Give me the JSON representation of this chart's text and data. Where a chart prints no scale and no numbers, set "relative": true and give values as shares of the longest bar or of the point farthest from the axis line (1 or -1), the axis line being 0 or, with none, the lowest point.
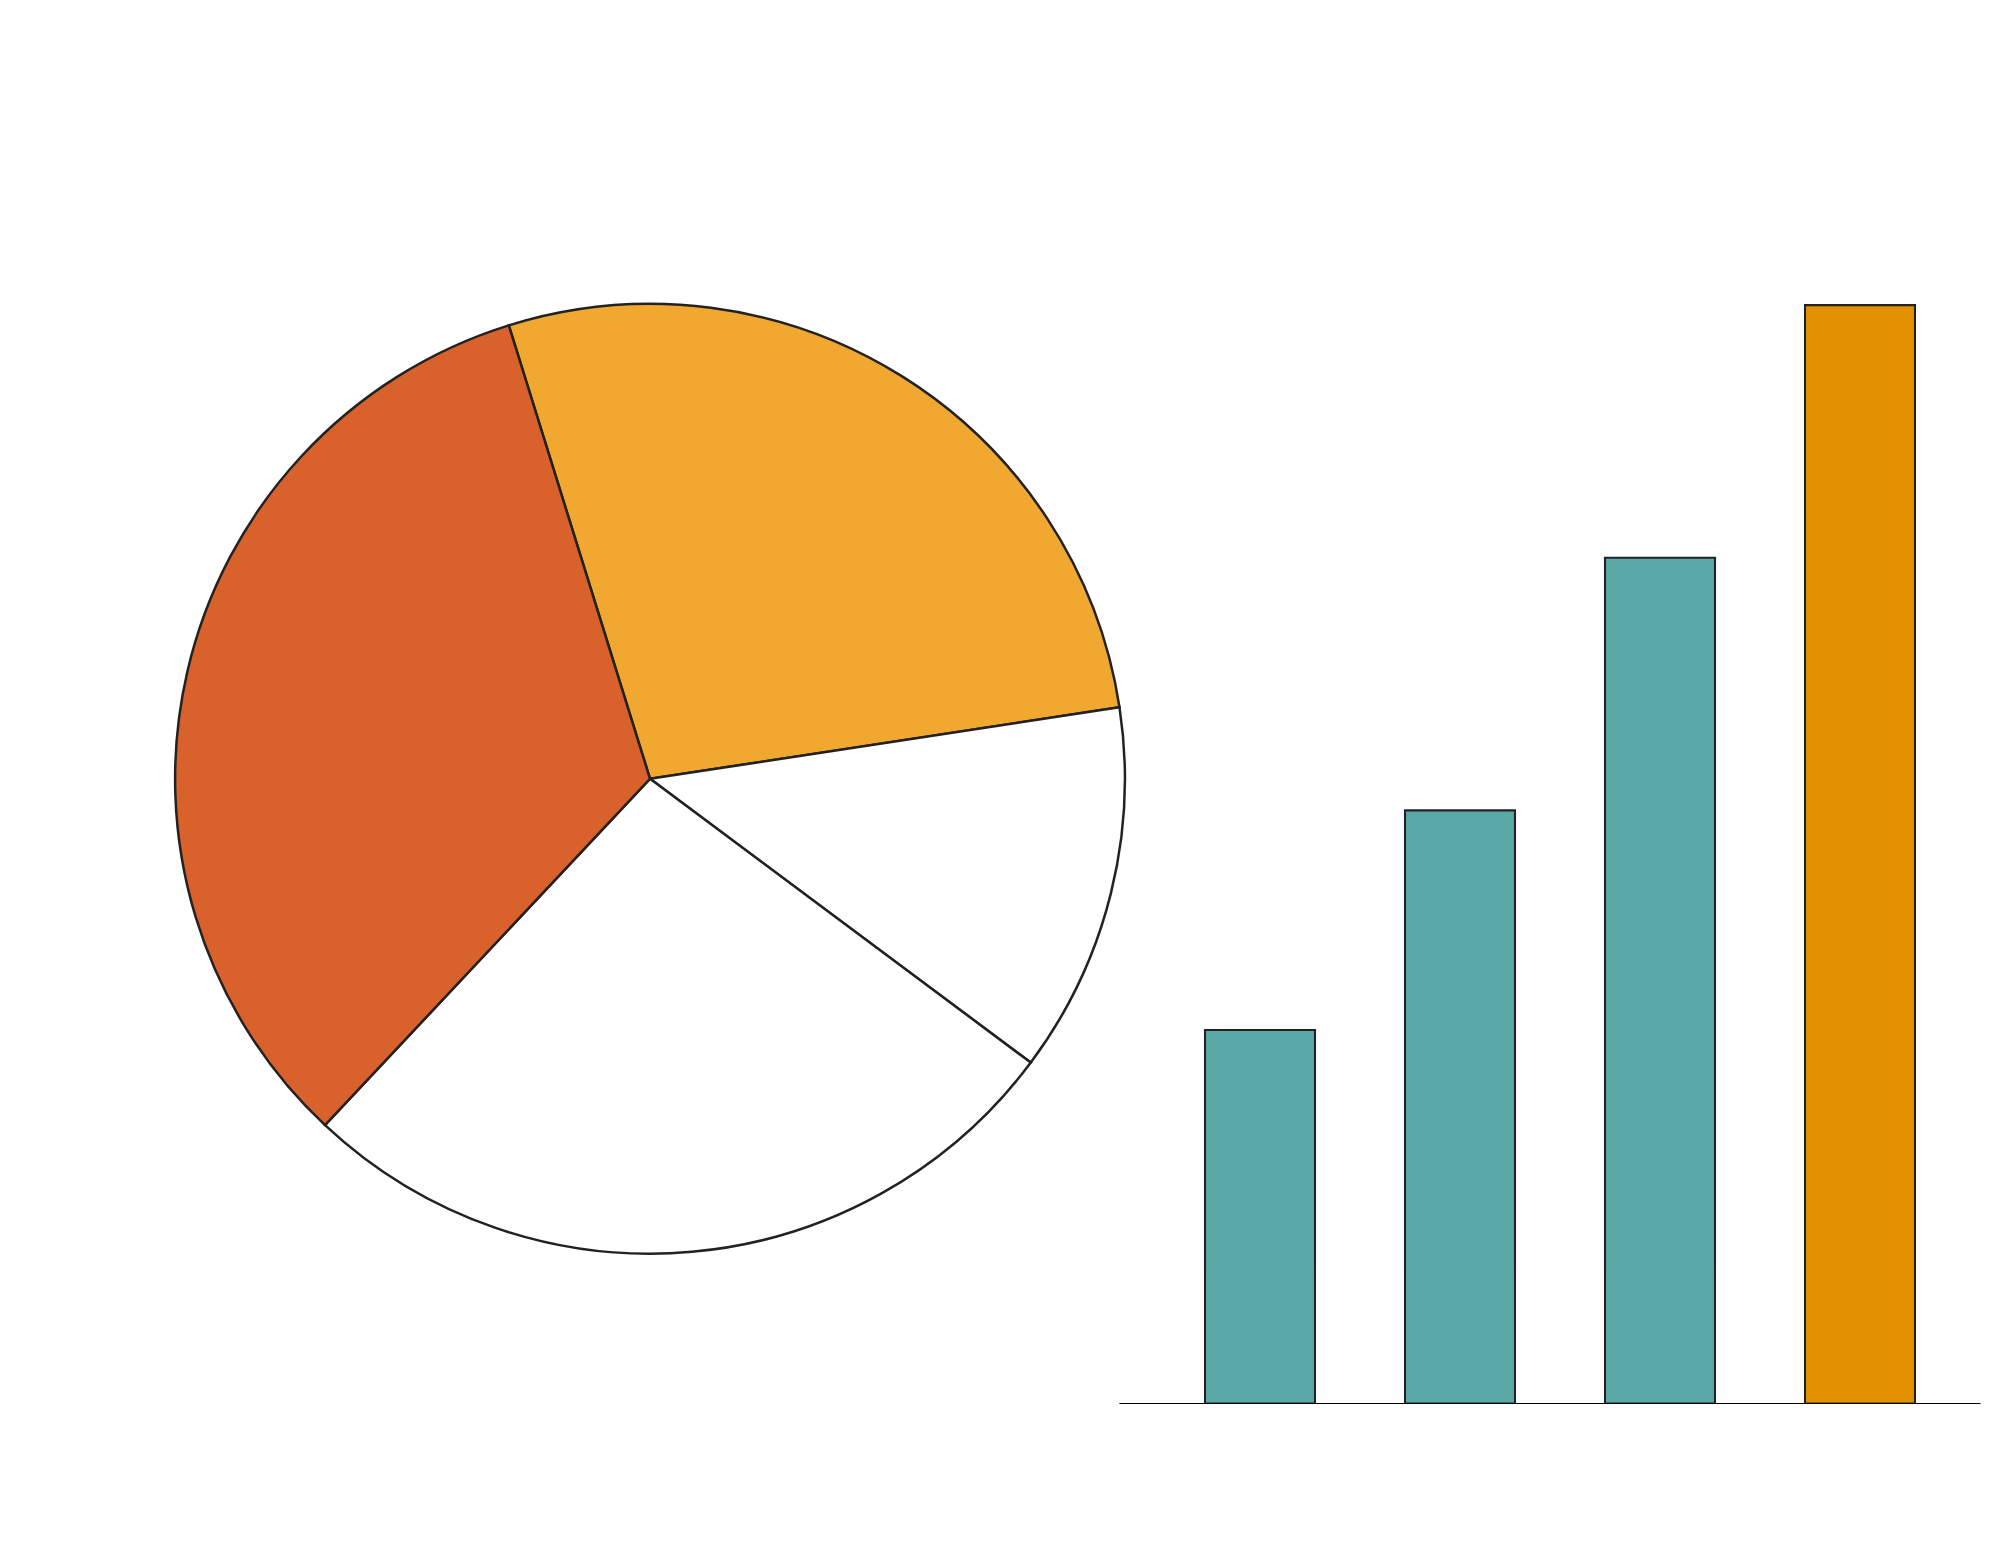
{
  "chart_data": [
    {
      "type": "pie",
      "categories": [
        null,
        null,
        null,
        null
      ],
      "values": [
        27.4,
        12.6,
        26.8,
        33.2
      ],
      "colors": [
        "#f0a830",
        "#ffffff",
        "#ffffff",
        "#d9612c"
      ]
    },
    {
      "type": "bar",
      "relative": true,
      "categories": [
        null,
        null,
        null,
        null
      ],
      "values": [
        0.34,
        0.54,
        0.77,
        1.0
      ],
      "colors": [
        "#5ba8a8",
        "#5ba8a8",
        "#5ba8a8",
        "#e29100"
      ]
    }
  ]
}
